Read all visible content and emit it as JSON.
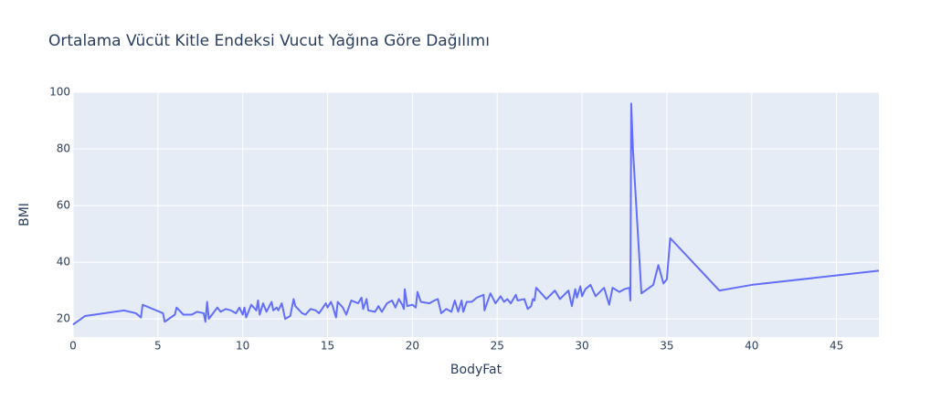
{
  "chart_data": {
    "type": "line",
    "title": "Ortalama Vücüt Kitle Endeksi Vucut Yağına Göre Dağılımı",
    "x_label": "BodyFat",
    "y_label": "BMI",
    "color": "#636efa",
    "grid": true,
    "xlim": [
      0,
      47.5
    ],
    "ylim": [
      13.6,
      100
    ],
    "xticks": [
      0,
      5,
      10,
      15,
      20,
      25,
      30,
      35,
      40,
      45
    ],
    "yticks": [
      20,
      40,
      60,
      80,
      100
    ],
    "x": [
      0,
      0.7,
      3,
      3.7,
      4,
      4.1,
      5.3,
      5.4,
      6,
      6.1,
      6.5,
      7,
      7.3,
      7.7,
      7.8,
      7.9,
      8,
      8.5,
      8.7,
      9,
      9.3,
      9.6,
      9.8,
      10,
      10.1,
      10.2,
      10.5,
      10.8,
      10.9,
      11,
      11.2,
      11.4,
      11.7,
      11.8,
      12,
      12.1,
      12.3,
      12.5,
      12.8,
      13,
      13.1,
      13.5,
      13.7,
      14,
      14.3,
      14.5,
      14.9,
      15,
      15.2,
      15.3,
      15.5,
      15.6,
      15.9,
      16.1,
      16.4,
      16.6,
      16.8,
      17,
      17.1,
      17.3,
      17.4,
      17.8,
      18,
      18.2,
      18.5,
      18.8,
      19,
      19.2,
      19.4,
      19.5,
      19.55,
      19.7,
      20,
      20.2,
      20.3,
      20.5,
      21,
      21.3,
      21.5,
      21.7,
      22,
      22.3,
      22.5,
      22.7,
      22.9,
      23,
      23.2,
      23.5,
      23.8,
      24.2,
      24.25,
      24.6,
      24.9,
      25.2,
      25.4,
      25.6,
      25.8,
      26.1,
      26.2,
      26.6,
      26.8,
      27,
      27.1,
      27.2,
      27.3,
      27.6,
      27.9,
      28.4,
      28.7,
      29.2,
      29.4,
      29.6,
      29.7,
      29.9,
      30,
      30.2,
      30.5,
      30.8,
      31.3,
      31.6,
      31.8,
      32.2,
      32.5,
      32.8,
      32.85,
      32.9,
      33,
      33.5,
      34.2,
      34.5,
      34.8,
      35,
      35.2,
      38.1,
      40,
      47.5
    ],
    "values": [
      18,
      21,
      23,
      22,
      20.5,
      25,
      22,
      19,
      21.5,
      24,
      21.5,
      21.5,
      22.5,
      22,
      19,
      26,
      20,
      24,
      22.5,
      23.5,
      23,
      22,
      24,
      21.5,
      24,
      20.5,
      25,
      23,
      26.5,
      21.5,
      25.5,
      22.5,
      26,
      23,
      24,
      23,
      25.5,
      20,
      21,
      27,
      24.5,
      22,
      21.5,
      23.5,
      23,
      22,
      25.5,
      24,
      26,
      24.5,
      20.5,
      26,
      24,
      21.5,
      26.5,
      26,
      25.5,
      27.5,
      23.5,
      27,
      23,
      22.5,
      24.5,
      22.5,
      25.5,
      26.5,
      24,
      27,
      25,
      23.5,
      30.5,
      24.5,
      25,
      24,
      29.5,
      26,
      25.5,
      26.5,
      27,
      22,
      23.5,
      22.5,
      26.5,
      22.5,
      26.5,
      22.5,
      26,
      26,
      27.5,
      28.5,
      23,
      29,
      25.5,
      28,
      26,
      27,
      25.5,
      28.5,
      26.5,
      27,
      23.5,
      24.5,
      27,
      26.5,
      31,
      29,
      27,
      30,
      27,
      30,
      24.5,
      30.5,
      27.5,
      31.5,
      28,
      30.5,
      32,
      28,
      31,
      25,
      31,
      29.5,
      30.5,
      31,
      26.5,
      96,
      80,
      29,
      32,
      39,
      32.5,
      34,
      48.5,
      30,
      32,
      37
    ]
  }
}
